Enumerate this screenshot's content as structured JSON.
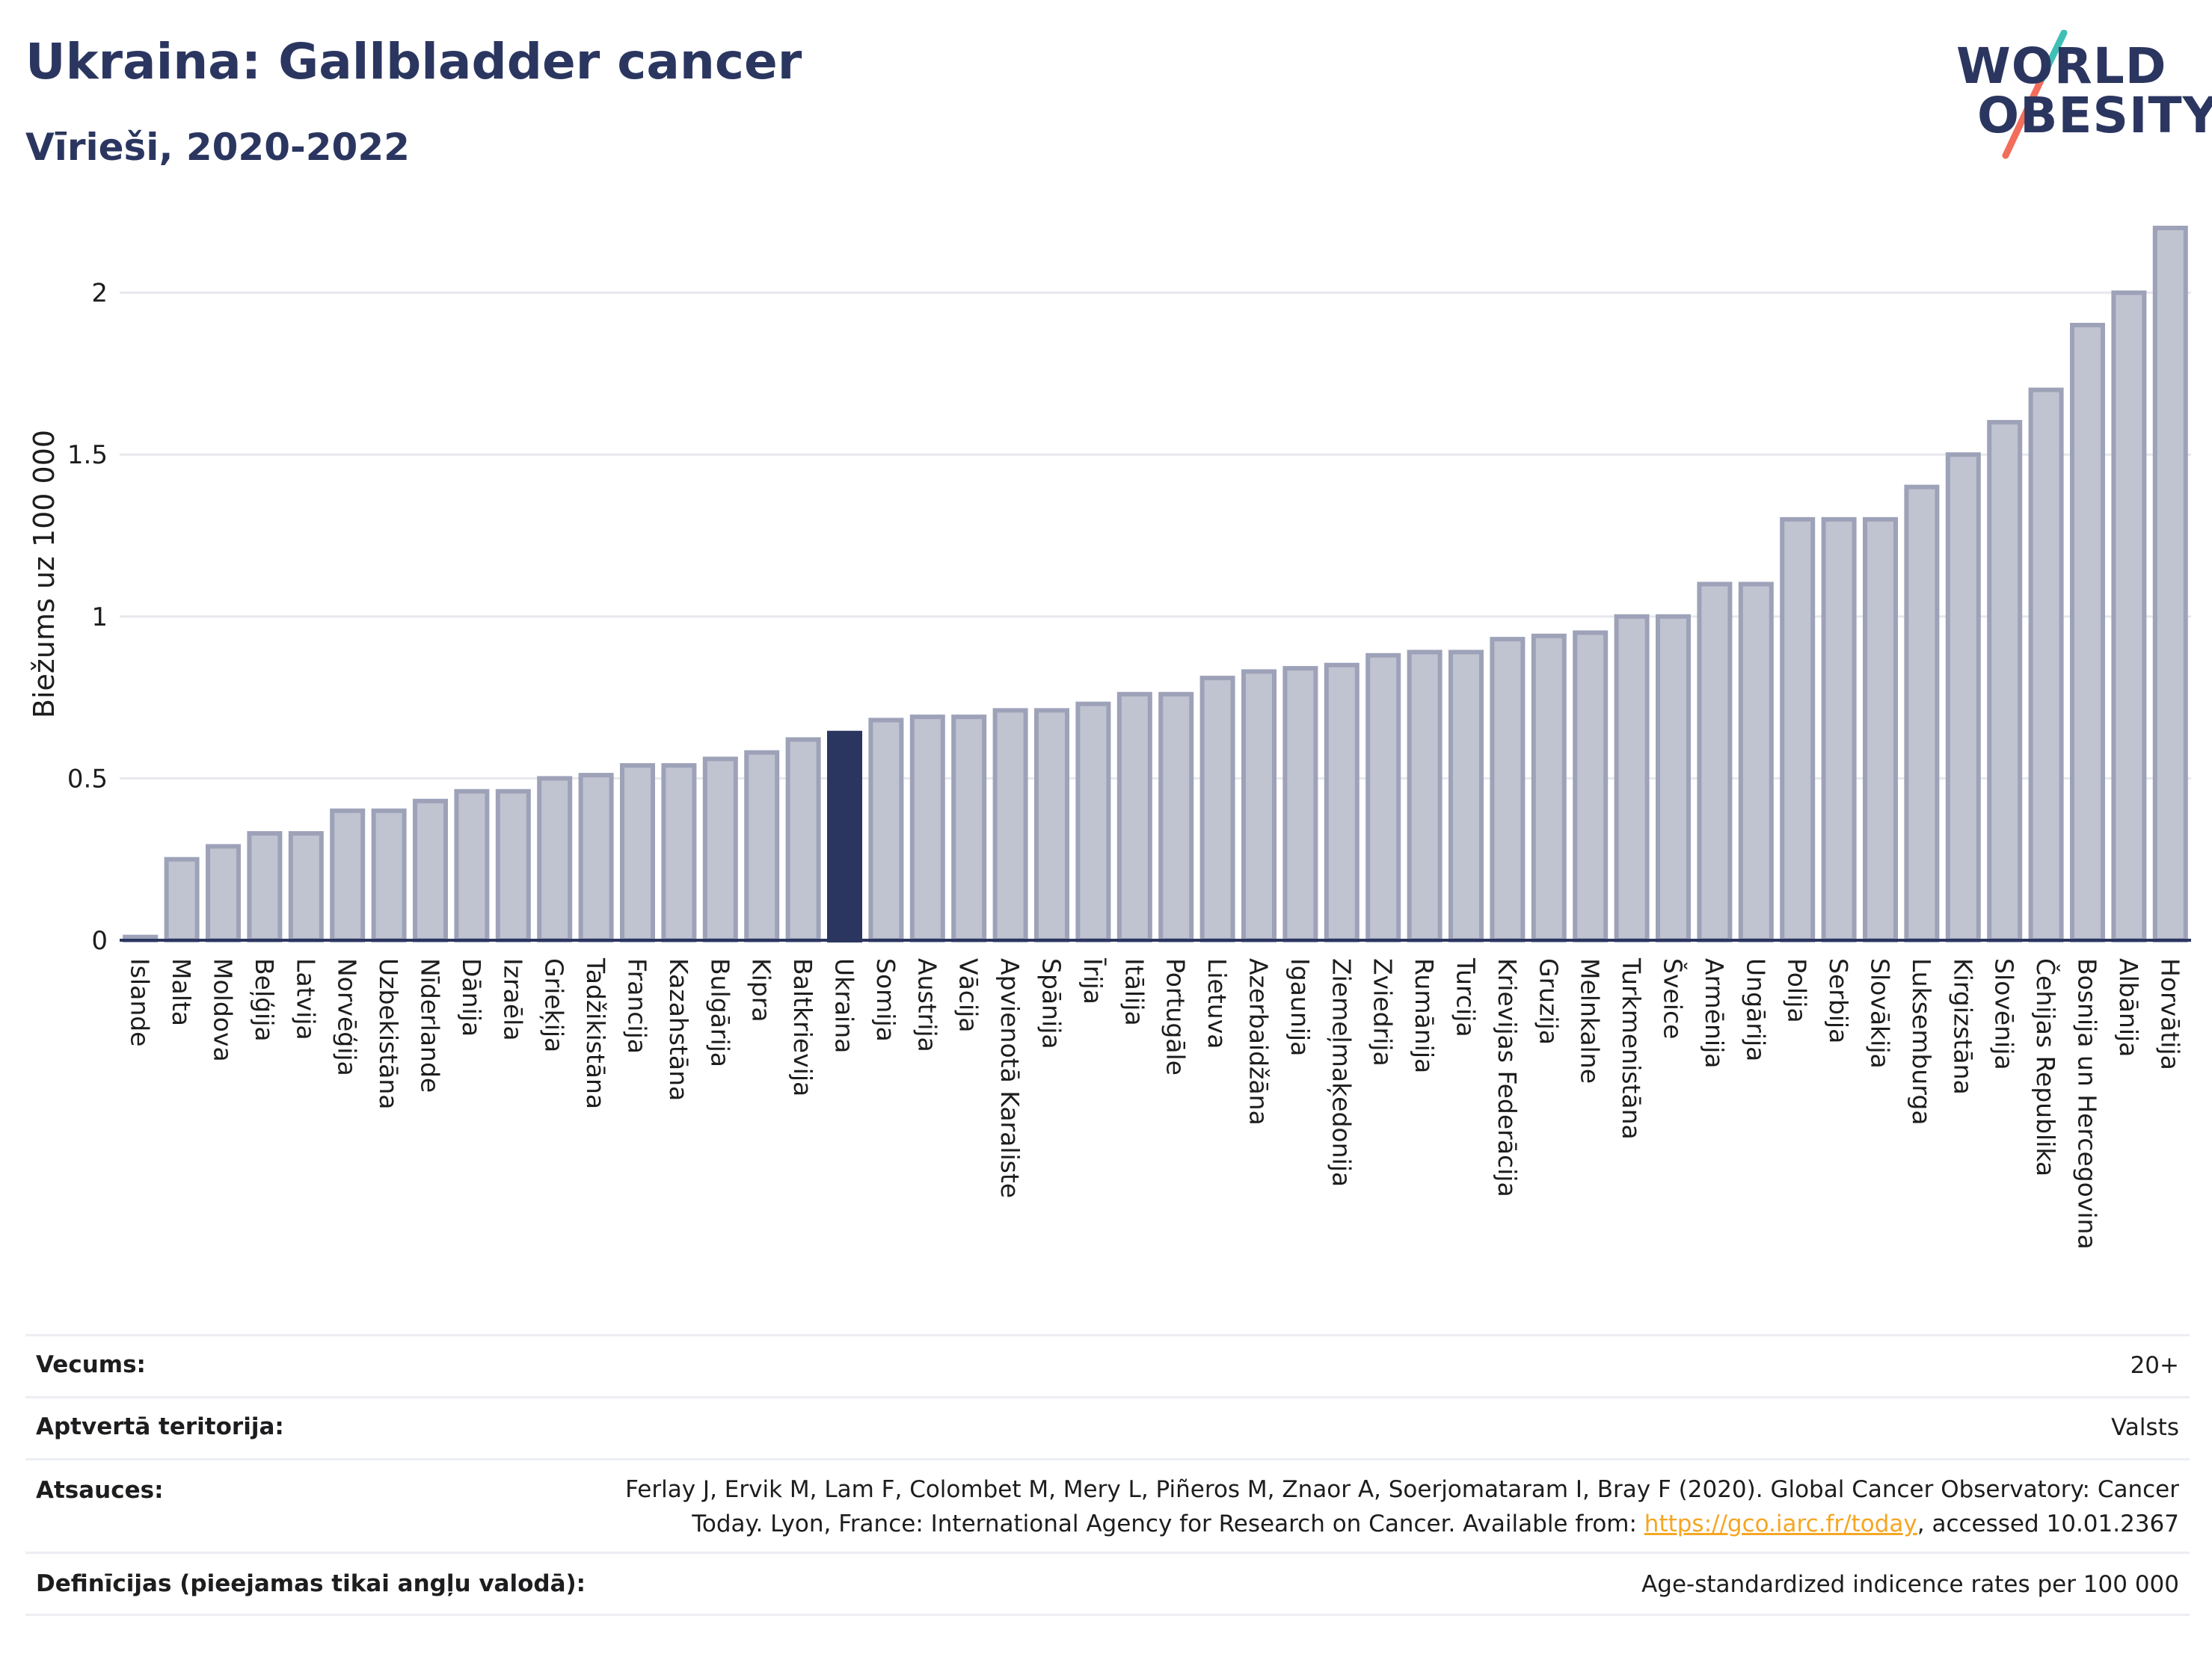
{
  "header": {
    "title": "Ukraina: Gallbladder cancer",
    "subtitle": "Vīrieši, 2020-2022"
  },
  "logo": {
    "line1": "WORLD",
    "line2": "OBESITY",
    "colors": {
      "slash_top": "#3fbfb5",
      "slash_bottom": "#f26d5b"
    }
  },
  "chart_data": {
    "type": "bar",
    "ylabel": "Biežums uz 100 000",
    "ylim": [
      0,
      2.2
    ],
    "yticks": [
      0,
      0.5,
      1,
      1.5,
      2
    ],
    "ytick_labels": [
      "0",
      "0.5",
      "1",
      "1.5",
      "2"
    ],
    "grid": true,
    "highlight": "Ukraina",
    "colors": {
      "bar": "#c0c3d0",
      "bar_border": "#9da2b8",
      "highlight": "#2b3660",
      "grid": "#e6e8ee",
      "axis": "#2b3660"
    },
    "categories": [
      "Islande",
      "Malta",
      "Moldova",
      "Beļģija",
      "Latvija",
      "Norvēģija",
      "Uzbekistāna",
      "Nīderlande",
      "Dānija",
      "Izraēla",
      "Grieķija",
      "Tadžikistāna",
      "Francija",
      "Kazahstāna",
      "Bulgārija",
      "Kipra",
      "Baltkrievija",
      "Ukraina",
      "Somija",
      "Austrija",
      "Vācija",
      "Apvienotā Karaliste",
      "Spānija",
      "Īrija",
      "Itālija",
      "Portugāle",
      "Lietuva",
      "Azerbaidžāna",
      "Igaunija",
      "Ziemeļmaķedonija",
      "Zviedrija",
      "Rumānija",
      "Turcija",
      "Krievijas Federācija",
      "Gruzija",
      "Melnkalne",
      "Turkmenistāna",
      "Šveice",
      "Armēnija",
      "Ungārija",
      "Polija",
      "Serbija",
      "Slovākija",
      "Luksemburga",
      "Kirgizstāna",
      "Slovēnija",
      "Čehijas Republika",
      "Bosnija un Hercegovina",
      "Albānija",
      "Horvātija"
    ],
    "values": [
      0.01,
      0.25,
      0.29,
      0.33,
      0.33,
      0.4,
      0.4,
      0.43,
      0.46,
      0.46,
      0.5,
      0.51,
      0.54,
      0.54,
      0.56,
      0.58,
      0.62,
      0.64,
      0.68,
      0.69,
      0.69,
      0.71,
      0.71,
      0.73,
      0.76,
      0.76,
      0.81,
      0.83,
      0.84,
      0.85,
      0.88,
      0.89,
      0.89,
      0.93,
      0.94,
      0.95,
      1.0,
      1.0,
      1.1,
      1.1,
      1.3,
      1.3,
      1.3,
      1.4,
      1.5,
      1.6,
      1.7,
      1.9,
      2.0,
      2.2
    ]
  },
  "info": {
    "age_label": "Vecums:",
    "age_value": "20+",
    "territory_label": "Aptvertā teritorija:",
    "territory_value": "Valsts",
    "sources_label": "Atsauces:",
    "sources_line1": "Ferlay J, Ervik M, Lam F, Colombet M, Mery L, Piñeros M, Znaor A, Soerjomataram I, Bray F (2020). Global Cancer Observatory: Cancer",
    "sources_line2_pre": "Today. Lyon, France: International Agency for Research on Cancer. Available from: ",
    "sources_link": "https://gco.iarc.fr/today",
    "sources_line2_post": ", accessed 10.01.2367",
    "definitions_label": "Definīcijas (pieejamas tikai angļu valodā):",
    "definitions_value": "Age-standardized indicence rates per 100 000"
  }
}
